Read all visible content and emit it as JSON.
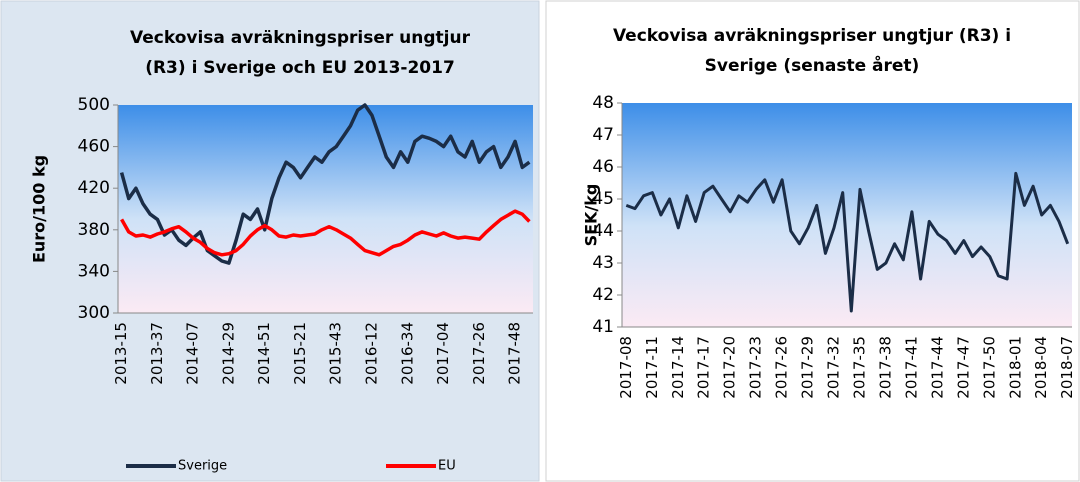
{
  "chart_data": [
    {
      "type": "line",
      "title": [
        "Veckovisa avräkningspriser  ungtjur",
        "(R3) i Sverige och EU 2013-2017"
      ],
      "ylabel": "Euro/100 kg",
      "categories": [
        "2013-15",
        null,
        null,
        null,
        null,
        "2013-37",
        null,
        null,
        null,
        null,
        "2014-07",
        null,
        null,
        null,
        null,
        "2014-29",
        null,
        null,
        null,
        null,
        "2014-51",
        null,
        null,
        null,
        null,
        "2015-21",
        null,
        null,
        null,
        null,
        "2015-43",
        null,
        null,
        null,
        null,
        "2016-12",
        null,
        null,
        null,
        null,
        "2016-34",
        null,
        null,
        null,
        null,
        "2017-04",
        null,
        null,
        null,
        null,
        "2017-26",
        null,
        null,
        null,
        null,
        "2017-48",
        null,
        null
      ],
      "series": [
        {
          "name": "Sverige",
          "color": "#1b2d47",
          "values": [
            435,
            410,
            420,
            405,
            395,
            390,
            375,
            380,
            370,
            365,
            372,
            378,
            360,
            355,
            350,
            348,
            370,
            395,
            390,
            400,
            380,
            410,
            430,
            445,
            440,
            430,
            440,
            450,
            445,
            455,
            460,
            470,
            480,
            495,
            500,
            490,
            470,
            450,
            440,
            455,
            445,
            465,
            470,
            468,
            465,
            460,
            470,
            455,
            450,
            465,
            445,
            455,
            460,
            440,
            450,
            465,
            440,
            445
          ]
        },
        {
          "name": "EU",
          "color": "#ff0000",
          "values": [
            390,
            378,
            374,
            375,
            373,
            376,
            378,
            381,
            383,
            378,
            372,
            368,
            362,
            358,
            356,
            357,
            360,
            366,
            374,
            380,
            384,
            380,
            374,
            373,
            375,
            374,
            375,
            376,
            380,
            383,
            380,
            376,
            372,
            366,
            360,
            358,
            356,
            360,
            364,
            366,
            370,
            375,
            378,
            376,
            374,
            377,
            374,
            372,
            373,
            372,
            371,
            378,
            384,
            390,
            394,
            398,
            395,
            388
          ]
        }
      ],
      "ylim": [
        300,
        500
      ],
      "yticks": [
        300,
        340,
        380,
        420,
        460,
        500
      ],
      "legend": "bottom"
    },
    {
      "type": "line",
      "title": [
        "Veckovisa avräkningspriser ungtjur (R3) i",
        "Sverige (senaste året)"
      ],
      "ylabel": "SEK/kg",
      "categories": [
        "2017-08",
        null,
        null,
        "2017-11",
        null,
        null,
        "2017-14",
        null,
        null,
        "2017-17",
        null,
        null,
        "2017-20",
        null,
        null,
        "2017-23",
        null,
        null,
        "2017-26",
        null,
        null,
        "2017-29",
        null,
        null,
        "2017-32",
        null,
        null,
        "2017-35",
        null,
        null,
        "2017-38",
        null,
        null,
        "2017-41",
        null,
        null,
        "2017-44",
        null,
        null,
        "2017-47",
        null,
        null,
        "2017-50",
        null,
        null,
        "2018-01",
        null,
        null,
        "2018-04",
        null,
        null,
        "2018-07"
      ],
      "series": [
        {
          "color": "#1b2d47",
          "values": [
            44.8,
            44.7,
            45.1,
            45.2,
            44.5,
            45.0,
            44.1,
            45.1,
            44.3,
            45.2,
            45.4,
            45.0,
            44.6,
            45.1,
            44.9,
            45.3,
            45.6,
            44.9,
            45.6,
            44.0,
            43.6,
            44.1,
            44.8,
            43.3,
            44.1,
            45.2,
            41.5,
            45.3,
            44.0,
            42.8,
            43.0,
            43.6,
            43.1,
            44.6,
            42.5,
            44.3,
            43.9,
            43.7,
            43.3,
            43.7,
            43.2,
            43.5,
            43.2,
            42.6,
            42.5,
            45.8,
            44.8,
            45.4,
            44.5,
            44.8,
            44.3,
            43.6
          ]
        }
      ],
      "ylim": [
        41,
        48
      ],
      "yticks": [
        41,
        42,
        43,
        44,
        45,
        46,
        47,
        48
      ]
    }
  ]
}
